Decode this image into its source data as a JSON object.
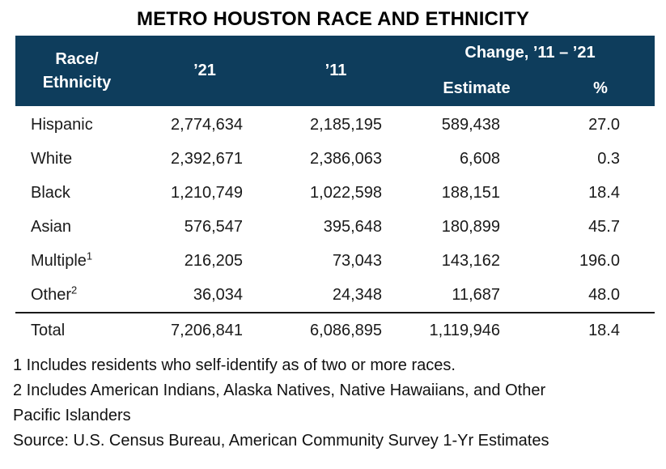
{
  "title": "METRO HOUSTON RACE AND ETHNICITY",
  "colors": {
    "header_bg": "#0e3d5c",
    "header_text": "#ffffff",
    "body_text": "#1a1a1a"
  },
  "table": {
    "header": {
      "race_line1": "Race/",
      "race_line2": "Ethnicity",
      "col_2021": "’21",
      "col_2011": "’11",
      "change_group": "Change, ’11 – ’21",
      "estimate": "Estimate",
      "percent": "%"
    },
    "rows": [
      {
        "race": "Hispanic",
        "sup": "",
        "y2021": "2,774,634",
        "y2011": "2,185,195",
        "estimate": "589,438",
        "pct": "27.0"
      },
      {
        "race": "White",
        "sup": "",
        "y2021": "2,392,671",
        "y2011": "2,386,063",
        "estimate": "6,608",
        "pct": "0.3"
      },
      {
        "race": "Black",
        "sup": "",
        "y2021": "1,210,749",
        "y2011": "1,022,598",
        "estimate": "188,151",
        "pct": "18.4"
      },
      {
        "race": "Asian",
        "sup": "",
        "y2021": "576,547",
        "y2011": "395,648",
        "estimate": "180,899",
        "pct": "45.7"
      },
      {
        "race": "Multiple",
        "sup": "1",
        "y2021": "216,205",
        "y2011": "73,043",
        "estimate": "143,162",
        "pct": "196.0"
      },
      {
        "race": "Other",
        "sup": "2",
        "y2021": "36,034",
        "y2011": "24,348",
        "estimate": "11,687",
        "pct": "48.0"
      }
    ],
    "total": {
      "race": "Total",
      "sup": "",
      "y2021": "7,206,841",
      "y2011": "6,086,895",
      "estimate": "1,119,946",
      "pct": "18.4"
    }
  },
  "footnotes": {
    "note1": "1 Includes residents who self-identify as of two or more races.",
    "note2_line1": "2 Includes American Indians, Alaska Natives, Native Hawaiians, and Other",
    "note2_line2": "Pacific Islanders",
    "source": "Source: U.S. Census Bureau, American Community Survey 1-Yr Estimates"
  },
  "chart_data": {
    "type": "table",
    "title": "METRO HOUSTON RACE AND ETHNICITY",
    "columns": [
      "Race/Ethnicity",
      "’21",
      "’11",
      "Change ’11–’21 Estimate",
      "Change ’11–’21 %"
    ],
    "rows": [
      [
        "Hispanic",
        2774634,
        2185195,
        589438,
        27.0
      ],
      [
        "White",
        2392671,
        2386063,
        6608,
        0.3
      ],
      [
        "Black",
        1210749,
        1022598,
        188151,
        18.4
      ],
      [
        "Asian",
        576547,
        395648,
        180899,
        45.7
      ],
      [
        "Multiple",
        216205,
        73043,
        143162,
        196.0
      ],
      [
        "Other",
        36034,
        24348,
        11687,
        48.0
      ],
      [
        "Total",
        7206841,
        6086895,
        1119946,
        18.4
      ]
    ],
    "notes": [
      "1 Includes residents who self-identify as of two or more races.",
      "2 Includes American Indians, Alaska Natives, Native Hawaiians, and Other Pacific Islanders"
    ],
    "source": "U.S. Census Bureau, American Community Survey 1-Yr Estimates"
  }
}
